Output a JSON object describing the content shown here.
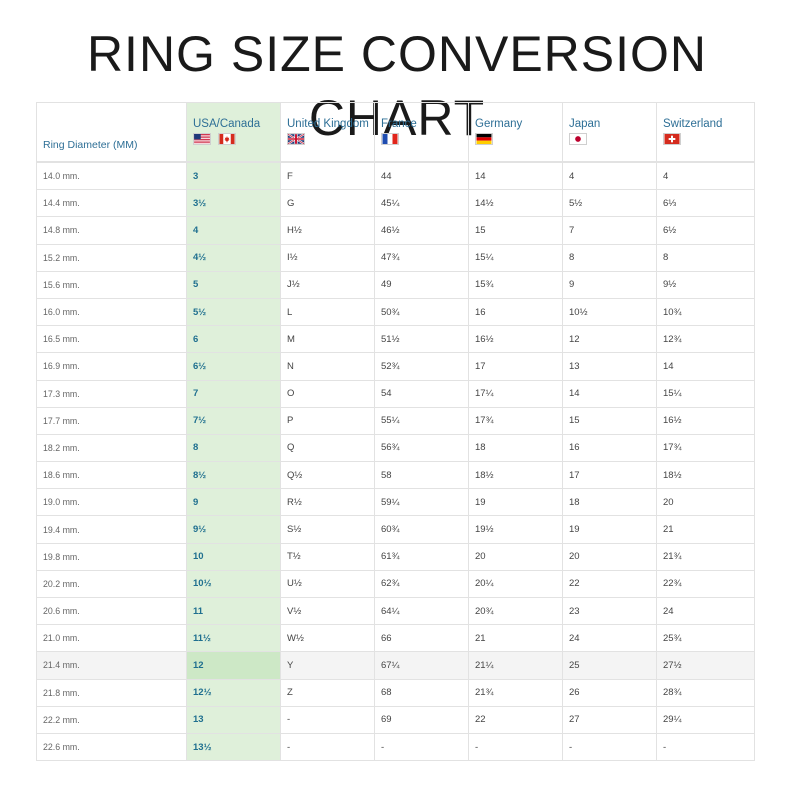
{
  "title": "RING SIZE CONVERSION CHART",
  "headers": {
    "diameter": "Ring Diameter (MM)",
    "usa": "USA/Canada",
    "uk": "United Kingdom",
    "france": "France",
    "germany": "Germany",
    "japan": "Japan",
    "switzerland": "Switzerland"
  },
  "flags": {
    "usa": "usa-flag-icon",
    "canada": "canada-flag-icon",
    "uk": "uk-flag-icon",
    "france": "france-flag-icon",
    "germany": "germany-flag-icon",
    "japan": "japan-flag-icon",
    "switzerland": "switzerland-flag-icon"
  },
  "colors": {
    "header_text": "#2e6f96",
    "usa_column_bg": "#dff0da",
    "usa_text": "#1f6f8f",
    "border": "#e2e2e2"
  },
  "highlighted_row": 18,
  "rows": [
    [
      "14.0 mm.",
      "3",
      "F",
      "44",
      "14",
      "4",
      "4"
    ],
    [
      "14.4 mm.",
      "3½",
      "G",
      "45¼",
      "14½",
      "5½",
      "6⅓"
    ],
    [
      "14.8 mm.",
      "4",
      "H½",
      "46½",
      "15",
      "7",
      "6½"
    ],
    [
      "15.2 mm.",
      "4½",
      "I½",
      "47¾",
      "15¼",
      "8",
      "8"
    ],
    [
      "15.6 mm.",
      "5",
      "J½",
      "49",
      "15¾",
      "9",
      "9½"
    ],
    [
      "16.0 mm.",
      "5½",
      "L",
      "50¾",
      "16",
      "10½",
      "10¾"
    ],
    [
      "16.5 mm.",
      "6",
      "M",
      "51½",
      "16½",
      "12",
      "12¾"
    ],
    [
      "16.9 mm.",
      "6½",
      "N",
      "52¾",
      "17",
      "13",
      "14"
    ],
    [
      "17.3 mm.",
      "7",
      "O",
      "54",
      "17¼",
      "14",
      "15¼"
    ],
    [
      "17.7 mm.",
      "7½",
      "P",
      "55¼",
      "17¾",
      "15",
      "16½"
    ],
    [
      "18.2 mm.",
      "8",
      "Q",
      "56¾",
      "18",
      "16",
      "17¾"
    ],
    [
      "18.6 mm.",
      "8½",
      "Q½",
      "58",
      "18½",
      "17",
      "18½"
    ],
    [
      "19.0 mm.",
      "9",
      "R½",
      "59¼",
      "19",
      "18",
      "20"
    ],
    [
      "19.4 mm.",
      "9½",
      "S½",
      "60¾",
      "19½",
      "19",
      "21"
    ],
    [
      "19.8 mm.",
      "10",
      "T½",
      "61¾",
      "20",
      "20",
      "21¾"
    ],
    [
      "20.2 mm.",
      "10½",
      "U½",
      "62¾",
      "20¼",
      "22",
      "22¾"
    ],
    [
      "20.6 mm.",
      "11",
      "V½",
      "64¼",
      "20¾",
      "23",
      "24"
    ],
    [
      "21.0 mm.",
      "11½",
      "W½",
      "66",
      "21",
      "24",
      "25¾"
    ],
    [
      "21.4 mm.",
      "12",
      "Y",
      "67¼",
      "21¼",
      "25",
      "27½"
    ],
    [
      "21.8 mm.",
      "12½",
      "Z",
      "68",
      "21¾",
      "26",
      "28¾"
    ],
    [
      "22.2 mm.",
      "13",
      "-",
      "69",
      "22",
      "27",
      "29¼"
    ],
    [
      "22.6 mm.",
      "13½",
      "-",
      "-",
      "-",
      "-",
      "-"
    ]
  ]
}
